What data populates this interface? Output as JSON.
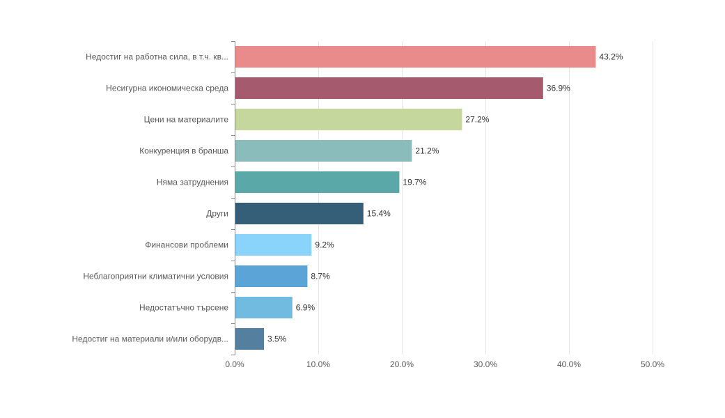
{
  "chart_data": {
    "type": "bar",
    "orientation": "horizontal",
    "categories": [
      "Недостиг на работна сила, в т.ч. кв...",
      "Несигурна икономическа среда",
      "Цени на материалите",
      "Конкуренция в бранша",
      "Няма затруднения",
      "Други",
      "Финансови проблеми",
      "Неблагоприятни климатични условия",
      "Недостатъчно търсене",
      "Недостиг на материали и/или оборудв..."
    ],
    "values": [
      43.2,
      36.9,
      27.2,
      21.2,
      19.7,
      15.4,
      9.2,
      8.7,
      6.9,
      3.5
    ],
    "data_labels": [
      "43.2%",
      "36.9%",
      "27.2%",
      "21.2%",
      "19.7%",
      "15.4%",
      "9.2%",
      "8.7%",
      "6.9%",
      "3.5%"
    ],
    "colors": [
      "#e88b8a",
      "#a65a6e",
      "#c5d79c",
      "#8abcbb",
      "#5aa9a8",
      "#355e79",
      "#8ad4fb",
      "#5aa4d8",
      "#71bbe0",
      "#547f9f"
    ],
    "xlim": [
      0,
      50
    ],
    "x_ticks": [
      0,
      10,
      20,
      30,
      40,
      50
    ],
    "x_tick_labels": [
      "0.0%",
      "10.0%",
      "20.0%",
      "30.0%",
      "40.0%",
      "50.0%"
    ],
    "grid": true,
    "legend": "none",
    "title": "",
    "xlabel": "",
    "ylabel": ""
  }
}
